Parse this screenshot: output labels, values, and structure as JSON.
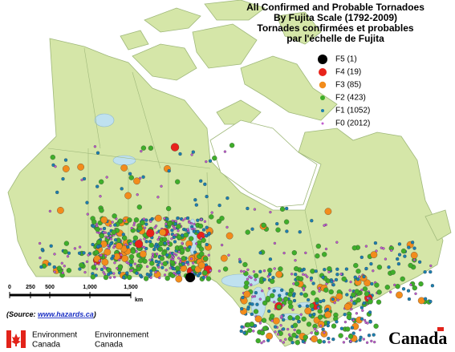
{
  "title": {
    "lines": [
      "All Confirmed and Probable Tornadoes",
      "By Fujita Scale (1792-2009)",
      "Tornades confirmées et probables",
      "par l'échelle de Fujita"
    ]
  },
  "legend": [
    {
      "label": "F5 (1)",
      "color": "#000000"
    },
    {
      "label": "F4 (19)",
      "color": "#e8231b"
    },
    {
      "label": "F3 (85)",
      "color": "#f28c1c"
    },
    {
      "label": "F2 (423)",
      "color": "#3fae2a"
    },
    {
      "label": "F1 (1052)",
      "color": "#1c7fb0"
    },
    {
      "label": "F0 (2012)",
      "color": "#c05cd0"
    }
  ],
  "scale_bar": {
    "labels": [
      "0",
      "250",
      "500",
      "1,000",
      "1,500"
    ],
    "unit": "km"
  },
  "source": {
    "prefix": "(Source: ",
    "link": "www.hazards.ca",
    "suffix": ")"
  },
  "logo": {
    "en": [
      "Environment",
      "Canada"
    ],
    "fr": [
      "Environnement",
      "Canada"
    ],
    "wordmark": "Canada"
  }
}
